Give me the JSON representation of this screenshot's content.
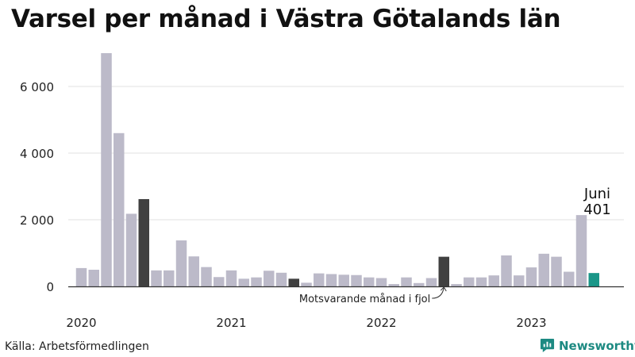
{
  "title": "Varsel per månad i Västra Götalands län",
  "source": "Källa: Arbetsförmedlingen",
  "brand": {
    "name": "Newsworthy",
    "icon": "newsworthy-logo-icon",
    "color": "#1d8a82"
  },
  "colors": {
    "bar": "#bcbac9",
    "same_month": "#404040",
    "latest": "#1a9688",
    "grid": "#e0e0e0",
    "axis": "#333333"
  },
  "chart_data": {
    "type": "bar",
    "title": "Varsel per månad i Västra Götalands län",
    "xlabel": "",
    "ylabel": "",
    "ylim": [
      0,
      7000
    ],
    "y_ticks": [
      0,
      2000,
      4000,
      6000
    ],
    "y_tick_labels": [
      "0",
      "2 000",
      "4 000",
      "6 000"
    ],
    "x_tick_labels": [
      {
        "label": "2020",
        "at": "2020-01"
      },
      {
        "label": "2021",
        "at": "2021-01"
      },
      {
        "label": "2022",
        "at": "2022-01"
      },
      {
        "label": "2023",
        "at": "2023-01"
      }
    ],
    "grid": true,
    "categories": [
      "2020-01",
      "2020-02",
      "2020-03",
      "2020-04",
      "2020-05",
      "2020-06",
      "2020-07",
      "2020-08",
      "2020-09",
      "2020-10",
      "2020-11",
      "2020-12",
      "2021-01",
      "2021-02",
      "2021-03",
      "2021-04",
      "2021-05",
      "2021-06",
      "2021-07",
      "2021-08",
      "2021-09",
      "2021-10",
      "2021-11",
      "2021-12",
      "2022-01",
      "2022-02",
      "2022-03",
      "2022-04",
      "2022-05",
      "2022-06",
      "2022-07",
      "2022-08",
      "2022-09",
      "2022-10",
      "2022-11",
      "2022-12",
      "2023-01",
      "2023-02",
      "2023-03",
      "2023-04",
      "2023-05",
      "2023-06"
    ],
    "values": [
      550,
      500,
      7000,
      4600,
      2180,
      2620,
      480,
      480,
      1380,
      900,
      580,
      280,
      480,
      230,
      270,
      470,
      410,
      230,
      110,
      390,
      370,
      350,
      340,
      270,
      250,
      70,
      270,
      100,
      250,
      890,
      70,
      270,
      270,
      330,
      930,
      330,
      570,
      980,
      890,
      440,
      2140,
      401
    ],
    "highlight_same_month": [
      "2020-06",
      "2021-06",
      "2022-06"
    ],
    "highlight_latest": "2023-06",
    "annotations": {
      "latest_month": "Juni",
      "latest_value": "401",
      "same_month_note": "Motsvarande månad i fjol"
    }
  }
}
